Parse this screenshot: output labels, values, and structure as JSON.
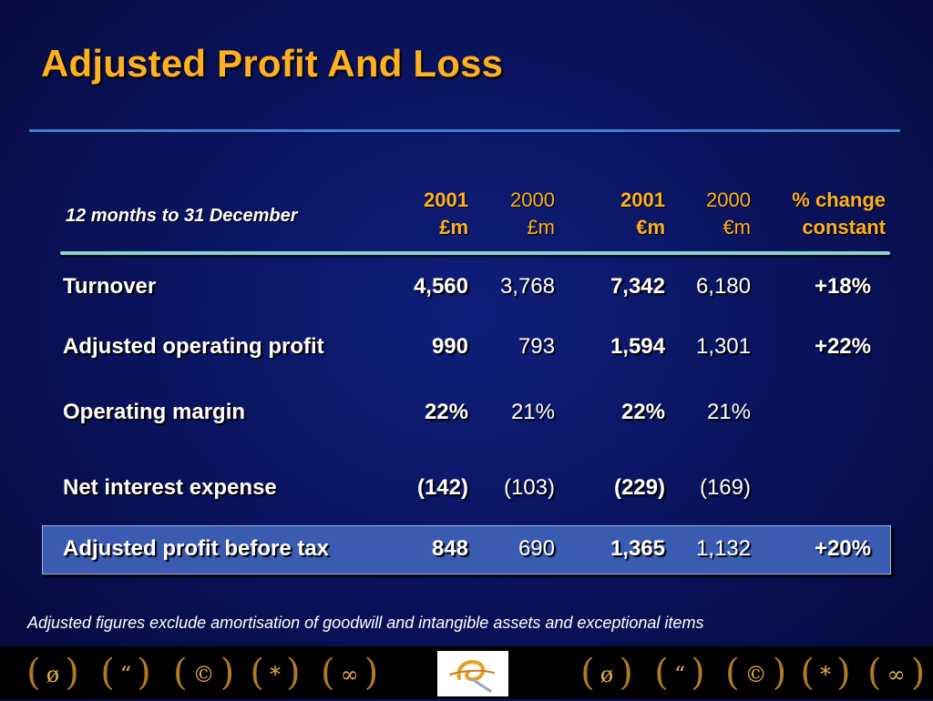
{
  "title": "Adjusted Profit And Loss",
  "period_label": "12 months to 31 December",
  "columns": [
    {
      "line1": "2001",
      "line2": "£m"
    },
    {
      "line1": "2000",
      "line2": "£m"
    },
    {
      "line1": "2001",
      "line2": "€m"
    },
    {
      "line1": "2000",
      "line2": "€m"
    },
    {
      "line1": "% change",
      "line2": "constant"
    }
  ],
  "rows": [
    {
      "label": "Turnover",
      "values": [
        "4,560",
        "3,768",
        "7,342",
        "6,180",
        "+18%"
      ]
    },
    {
      "label": "Adjusted operating profit",
      "values": [
        "990",
        "793",
        "1,594",
        "1,301",
        "+22%"
      ]
    },
    {
      "label": "Operating margin",
      "values": [
        "22%",
        "21%",
        "22%",
        "21%",
        ""
      ]
    },
    {
      "label": "Net interest expense",
      "values": [
        "(142)",
        "(103)",
        "(229)",
        "(169)",
        ""
      ]
    },
    {
      "label": "Adjusted profit before tax",
      "values": [
        "848",
        "690",
        "1,365",
        "1,132",
        "+20%"
      ]
    }
  ],
  "footnote": "Adjusted figures exclude amortisation of goodwill and intangible assets and exceptional items",
  "footer_symbols": [
    "ø",
    "“",
    "©",
    "*",
    "∞",
    "ø",
    "“",
    "©",
    "*",
    "∞"
  ],
  "colors": {
    "title": "#ffb020",
    "accent_rule": "#3f7fd0",
    "header_rule": "#7fd8d8",
    "highlight_row": "#3a5bb0"
  }
}
